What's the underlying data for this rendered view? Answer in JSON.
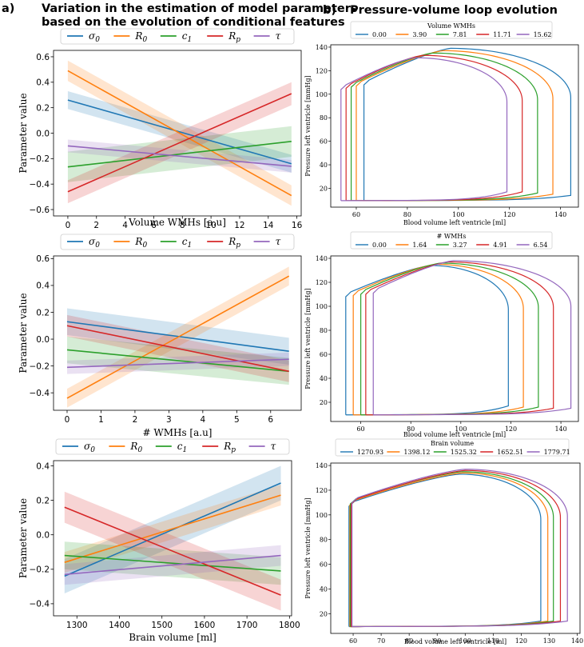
{
  "headers": {
    "a_label": "a)",
    "a_title_line1": "Variation in the estimation of model parameters",
    "a_title_line2": "based on the evolution of conditional features",
    "b_label": "b)",
    "b_title": "Pressure-volume loop evolution"
  },
  "colors": {
    "sigma0": "#1f77b4",
    "R0": "#ff7f0e",
    "c1": "#2ca02c",
    "Rp": "#d62728",
    "tau": "#9467bd"
  },
  "chart_data": [
    {
      "type": "line",
      "title": "",
      "xlabel": "Volume WMHs [a.u]",
      "ylabel": "Parameter value",
      "xlim": [
        -1,
        16.3
      ],
      "ylim": [
        -0.65,
        0.65
      ],
      "xticks": [
        "0",
        "2",
        "4",
        "6",
        "8",
        "10",
        "12",
        "14",
        "16"
      ],
      "yticks": [
        "-0.6",
        "-0.4",
        "-0.2",
        "0.0",
        "0.2",
        "0.4",
        "0.6"
      ],
      "legend": [
        "σ0",
        "R0",
        "c1",
        "Rp",
        "τ"
      ],
      "legend_position": "top",
      "x": [
        0,
        15.62
      ],
      "series": [
        {
          "name": "σ0",
          "key": "sigma0",
          "values": [
            0.26,
            -0.24
          ],
          "band": [
            0.07,
            0.07
          ]
        },
        {
          "name": "R0",
          "key": "R0",
          "values": [
            0.49,
            -0.49
          ],
          "band": [
            0.08,
            0.08
          ]
        },
        {
          "name": "c1",
          "key": "c1",
          "values": [
            -0.265,
            -0.065
          ],
          "band": [
            0.12,
            0.12
          ]
        },
        {
          "name": "Rp",
          "key": "Rp",
          "values": [
            -0.46,
            0.31
          ],
          "band": [
            0.09,
            0.09
          ]
        },
        {
          "name": "τ",
          "key": "tau",
          "values": [
            -0.1,
            -0.26
          ],
          "band": [
            0.05,
            0.05
          ]
        }
      ]
    },
    {
      "type": "line",
      "title": "",
      "xlabel": "# WMHs [a.u]",
      "ylabel": "Parameter value",
      "xlim": [
        -0.4,
        6.9
      ],
      "ylim": [
        -0.53,
        0.62
      ],
      "xticks": [
        "0",
        "1",
        "2",
        "3",
        "4",
        "5",
        "6"
      ],
      "yticks": [
        "-0.4",
        "-0.2",
        "0.0",
        "0.2",
        "0.4",
        "0.6"
      ],
      "legend": [
        "σ0",
        "R0",
        "c1",
        "Rp",
        "τ"
      ],
      "legend_position": "top",
      "x": [
        0,
        6.54
      ],
      "series": [
        {
          "name": "σ0",
          "key": "sigma0",
          "values": [
            0.13,
            -0.09
          ],
          "band": [
            0.1,
            0.1
          ]
        },
        {
          "name": "R0",
          "key": "R0",
          "values": [
            -0.44,
            0.47
          ],
          "band": [
            0.07,
            0.07
          ]
        },
        {
          "name": "c1",
          "key": "c1",
          "values": [
            -0.08,
            -0.24
          ],
          "band": [
            0.1,
            0.1
          ]
        },
        {
          "name": "Rp",
          "key": "Rp",
          "values": [
            0.1,
            -0.24
          ],
          "band": [
            0.08,
            0.08
          ]
        },
        {
          "name": "τ",
          "key": "tau",
          "values": [
            -0.21,
            -0.15
          ],
          "band": [
            0.05,
            0.05
          ]
        }
      ]
    },
    {
      "type": "line",
      "title": "",
      "xlabel": "Brain volume [ml]",
      "ylabel": "Parameter value",
      "xlim": [
        1245,
        1805
      ],
      "ylim": [
        -0.47,
        0.43
      ],
      "xticks": [
        "1300",
        "1400",
        "1500",
        "1600",
        "1700",
        "1800"
      ],
      "yticks": [
        "-0.4",
        "-0.2",
        "0.0",
        "0.2",
        "0.4"
      ],
      "legend": [
        "σ0",
        "R0",
        "c1",
        "Rp",
        "τ"
      ],
      "legend_position": "top",
      "x": [
        1270.93,
        1779.71
      ],
      "series": [
        {
          "name": "σ0",
          "key": "sigma0",
          "values": [
            -0.24,
            0.3
          ],
          "band": [
            0.1,
            0.1
          ]
        },
        {
          "name": "R0",
          "key": "R0",
          "values": [
            -0.16,
            0.23
          ],
          "band": [
            0.06,
            0.06
          ]
        },
        {
          "name": "c1",
          "key": "c1",
          "values": [
            -0.12,
            -0.21
          ],
          "band": [
            0.08,
            0.08
          ]
        },
        {
          "name": "Rp",
          "key": "Rp",
          "values": [
            0.16,
            -0.35
          ],
          "band": [
            0.09,
            0.09
          ]
        },
        {
          "name": "τ",
          "key": "tau",
          "values": [
            -0.23,
            -0.12
          ],
          "band": [
            0.06,
            0.06
          ]
        }
      ]
    },
    {
      "type": "line",
      "title": "",
      "xlabel": "Blood volume left ventricle [ml]",
      "ylabel": "Pressure left ventricle [mmHg]",
      "xlim": [
        50,
        147
      ],
      "ylim": [
        4,
        142
      ],
      "xticks": [
        "60",
        "80",
        "100",
        "120",
        "140"
      ],
      "yticks": [
        "20",
        "40",
        "60",
        "80",
        "100",
        "120",
        "140"
      ],
      "legend_title": "Volume WMHs",
      "legend": [
        "0.00",
        "3.90",
        "7.81",
        "11.71",
        "15.62"
      ],
      "legend_position": "top",
      "series": [
        {
          "name": "0.00",
          "key": "sigma0",
          "edv": 144,
          "esv": 63,
          "pmax": 139,
          "vpeak": 97,
          "pes": 108,
          "pv": 14
        },
        {
          "name": "3.90",
          "key": "R0",
          "edv": 137,
          "esv": 60,
          "pmax": 137,
          "vpeak": 94,
          "pes": 107,
          "pv": 15
        },
        {
          "name": "7.81",
          "key": "c1",
          "edv": 131,
          "esv": 58,
          "pmax": 135,
          "vpeak": 90,
          "pes": 106,
          "pv": 16
        },
        {
          "name": "11.71",
          "key": "Rp",
          "edv": 125,
          "esv": 56,
          "pmax": 133,
          "vpeak": 86,
          "pes": 105,
          "pv": 17
        },
        {
          "name": "15.62",
          "key": "tau",
          "edv": 119,
          "esv": 54,
          "pmax": 131,
          "vpeak": 83,
          "pes": 104,
          "pv": 17
        }
      ]
    },
    {
      "type": "line",
      "title": "",
      "xlabel": "Blood volume left ventricle [ml]",
      "ylabel": "Pressure left ventricle [mmHg]",
      "xlim": [
        48,
        147
      ],
      "ylim": [
        4,
        142
      ],
      "xticks": [
        "60",
        "80",
        "100",
        "120",
        "140"
      ],
      "yticks": [
        "20",
        "40",
        "60",
        "80",
        "100",
        "120",
        "140"
      ],
      "legend_title": "# WMHs",
      "legend": [
        "0.00",
        "1.64",
        "3.27",
        "4.91",
        "6.54"
      ],
      "legend_position": "top",
      "series": [
        {
          "name": "0.00",
          "key": "sigma0",
          "edv": 119,
          "esv": 54,
          "pmax": 134,
          "vpeak": 88,
          "pes": 108,
          "pv": 17
        },
        {
          "name": "1.64",
          "key": "R0",
          "edv": 125,
          "esv": 57,
          "pmax": 135,
          "vpeak": 90,
          "pes": 109,
          "pv": 16
        },
        {
          "name": "3.27",
          "key": "c1",
          "edv": 131,
          "esv": 60,
          "pmax": 136,
          "vpeak": 92,
          "pes": 110,
          "pv": 16
        },
        {
          "name": "4.91",
          "key": "Rp",
          "edv": 137,
          "esv": 62,
          "pmax": 137,
          "vpeak": 95,
          "pes": 110,
          "pv": 15
        },
        {
          "name": "6.54",
          "key": "tau",
          "edv": 144,
          "esv": 65,
          "pmax": 138,
          "vpeak": 97,
          "pes": 111,
          "pv": 15
        }
      ]
    },
    {
      "type": "line",
      "title": "",
      "xlabel": "Blood volume left ventricle [ml]",
      "ylabel": "Pressure left ventricle [mmHg]",
      "xlim": [
        52,
        141
      ],
      "ylim": [
        4,
        142
      ],
      "xticks": [
        "60",
        "70",
        "80",
        "90",
        "100",
        "110",
        "120",
        "130",
        "140"
      ],
      "yticks": [
        "20",
        "40",
        "60",
        "80",
        "100",
        "120",
        "140"
      ],
      "legend_title": "Brain volume",
      "legend": [
        "1270.93",
        "1398.12",
        "1525.32",
        "1652.51",
        "1779.71"
      ],
      "legend_position": "top",
      "series": [
        {
          "name": "1270.93",
          "key": "sigma0",
          "edv": 127,
          "esv": 58.5,
          "pmax": 133,
          "vpeak": 98,
          "pes": 107,
          "pv": 14
        },
        {
          "name": "1398.12",
          "key": "R0",
          "edv": 129.5,
          "esv": 58.8,
          "pmax": 134,
          "vpeak": 99,
          "pes": 108,
          "pv": 14
        },
        {
          "name": "1525.32",
          "key": "c1",
          "edv": 131.5,
          "esv": 59,
          "pmax": 135,
          "vpeak": 99,
          "pes": 109,
          "pv": 14
        },
        {
          "name": "1652.51",
          "key": "Rp",
          "edv": 134,
          "esv": 59.3,
          "pmax": 136,
          "vpeak": 100,
          "pes": 109,
          "pv": 14
        },
        {
          "name": "1779.71",
          "key": "tau",
          "edv": 136.5,
          "esv": 59.6,
          "pmax": 137,
          "vpeak": 100,
          "pes": 110,
          "pv": 14
        }
      ]
    }
  ]
}
